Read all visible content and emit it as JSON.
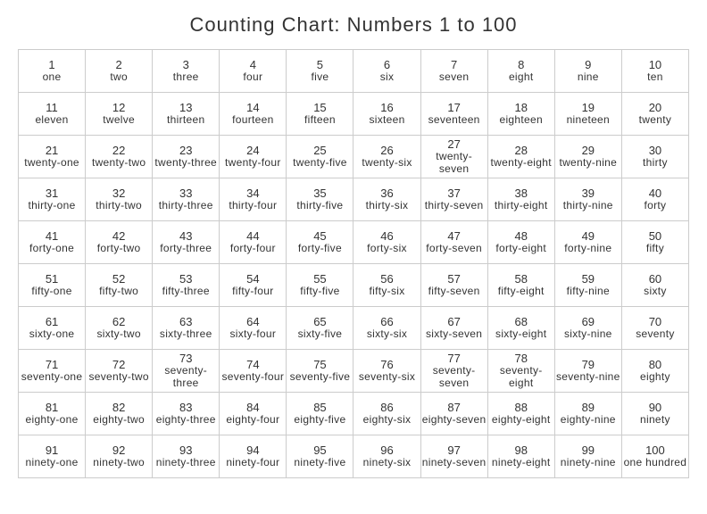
{
  "title": "Counting Chart: Numbers 1 to 100",
  "table": {
    "type": "table",
    "columns": 10,
    "rows": 10,
    "border_color": "#cccccc",
    "background_color": "#ffffff",
    "text_color": "#333333",
    "number_fontsize": 13,
    "word_fontsize": 12,
    "title_fontsize": 22,
    "cells": [
      {
        "n": "1",
        "w": "one"
      },
      {
        "n": "2",
        "w": "two"
      },
      {
        "n": "3",
        "w": "three"
      },
      {
        "n": "4",
        "w": "four"
      },
      {
        "n": "5",
        "w": "five"
      },
      {
        "n": "6",
        "w": "six"
      },
      {
        "n": "7",
        "w": "seven"
      },
      {
        "n": "8",
        "w": "eight"
      },
      {
        "n": "9",
        "w": "nine"
      },
      {
        "n": "10",
        "w": "ten"
      },
      {
        "n": "11",
        "w": "eleven"
      },
      {
        "n": "12",
        "w": "twelve"
      },
      {
        "n": "13",
        "w": "thirteen"
      },
      {
        "n": "14",
        "w": "fourteen"
      },
      {
        "n": "15",
        "w": "fifteen"
      },
      {
        "n": "16",
        "w": "sixteen"
      },
      {
        "n": "17",
        "w": "seventeen"
      },
      {
        "n": "18",
        "w": "eighteen"
      },
      {
        "n": "19",
        "w": "nineteen"
      },
      {
        "n": "20",
        "w": "twenty"
      },
      {
        "n": "21",
        "w": "twenty-one"
      },
      {
        "n": "22",
        "w": "twenty-two"
      },
      {
        "n": "23",
        "w": "twenty-three"
      },
      {
        "n": "24",
        "w": "twenty-four"
      },
      {
        "n": "25",
        "w": "twenty-five"
      },
      {
        "n": "26",
        "w": "twenty-six"
      },
      {
        "n": "27",
        "w": "twenty-seven"
      },
      {
        "n": "28",
        "w": "twenty-eight"
      },
      {
        "n": "29",
        "w": "twenty-nine"
      },
      {
        "n": "30",
        "w": "thirty"
      },
      {
        "n": "31",
        "w": "thirty-one"
      },
      {
        "n": "32",
        "w": "thirty-two"
      },
      {
        "n": "33",
        "w": "thirty-three"
      },
      {
        "n": "34",
        "w": "thirty-four"
      },
      {
        "n": "35",
        "w": "thirty-five"
      },
      {
        "n": "36",
        "w": "thirty-six"
      },
      {
        "n": "37",
        "w": "thirty-seven"
      },
      {
        "n": "38",
        "w": "thirty-eight"
      },
      {
        "n": "39",
        "w": "thirty-nine"
      },
      {
        "n": "40",
        "w": "forty"
      },
      {
        "n": "41",
        "w": "forty-one"
      },
      {
        "n": "42",
        "w": "forty-two"
      },
      {
        "n": "43",
        "w": "forty-three"
      },
      {
        "n": "44",
        "w": "forty-four"
      },
      {
        "n": "45",
        "w": "forty-five"
      },
      {
        "n": "46",
        "w": "forty-six"
      },
      {
        "n": "47",
        "w": "forty-seven"
      },
      {
        "n": "48",
        "w": "forty-eight"
      },
      {
        "n": "49",
        "w": "forty-nine"
      },
      {
        "n": "50",
        "w": "fifty"
      },
      {
        "n": "51",
        "w": "fifty-one"
      },
      {
        "n": "52",
        "w": "fifty-two"
      },
      {
        "n": "53",
        "w": "fifty-three"
      },
      {
        "n": "54",
        "w": "fifty-four"
      },
      {
        "n": "55",
        "w": "fifty-five"
      },
      {
        "n": "56",
        "w": "fifty-six"
      },
      {
        "n": "57",
        "w": "fifty-seven"
      },
      {
        "n": "58",
        "w": "fifty-eight"
      },
      {
        "n": "59",
        "w": "fifty-nine"
      },
      {
        "n": "60",
        "w": "sixty"
      },
      {
        "n": "61",
        "w": "sixty-one"
      },
      {
        "n": "62",
        "w": "sixty-two"
      },
      {
        "n": "63",
        "w": "sixty-three"
      },
      {
        "n": "64",
        "w": "sixty-four"
      },
      {
        "n": "65",
        "w": "sixty-five"
      },
      {
        "n": "66",
        "w": "sixty-six"
      },
      {
        "n": "67",
        "w": "sixty-seven"
      },
      {
        "n": "68",
        "w": "sixty-eight"
      },
      {
        "n": "69",
        "w": "sixty-nine"
      },
      {
        "n": "70",
        "w": "seventy"
      },
      {
        "n": "71",
        "w": "seventy-one"
      },
      {
        "n": "72",
        "w": "seventy-two"
      },
      {
        "n": "73",
        "w": "seventy-three"
      },
      {
        "n": "74",
        "w": "seventy-four"
      },
      {
        "n": "75",
        "w": "seventy-five"
      },
      {
        "n": "76",
        "w": "seventy-six"
      },
      {
        "n": "77",
        "w": "seventy-seven"
      },
      {
        "n": "78",
        "w": "seventy-eight"
      },
      {
        "n": "79",
        "w": "seventy-nine"
      },
      {
        "n": "80",
        "w": "eighty"
      },
      {
        "n": "81",
        "w": "eighty-one"
      },
      {
        "n": "82",
        "w": "eighty-two"
      },
      {
        "n": "83",
        "w": "eighty-three"
      },
      {
        "n": "84",
        "w": "eighty-four"
      },
      {
        "n": "85",
        "w": "eighty-five"
      },
      {
        "n": "86",
        "w": "eighty-six"
      },
      {
        "n": "87",
        "w": "eighty-seven"
      },
      {
        "n": "88",
        "w": "eighty-eight"
      },
      {
        "n": "89",
        "w": "eighty-nine"
      },
      {
        "n": "90",
        "w": "ninety"
      },
      {
        "n": "91",
        "w": "ninety-one"
      },
      {
        "n": "92",
        "w": "ninety-two"
      },
      {
        "n": "93",
        "w": "ninety-three"
      },
      {
        "n": "94",
        "w": "ninety-four"
      },
      {
        "n": "95",
        "w": "ninety-five"
      },
      {
        "n": "96",
        "w": "ninety-six"
      },
      {
        "n": "97",
        "w": "ninety-seven"
      },
      {
        "n": "98",
        "w": "ninety-eight"
      },
      {
        "n": "99",
        "w": "ninety-nine"
      },
      {
        "n": "100",
        "w": "one hundred"
      }
    ]
  }
}
